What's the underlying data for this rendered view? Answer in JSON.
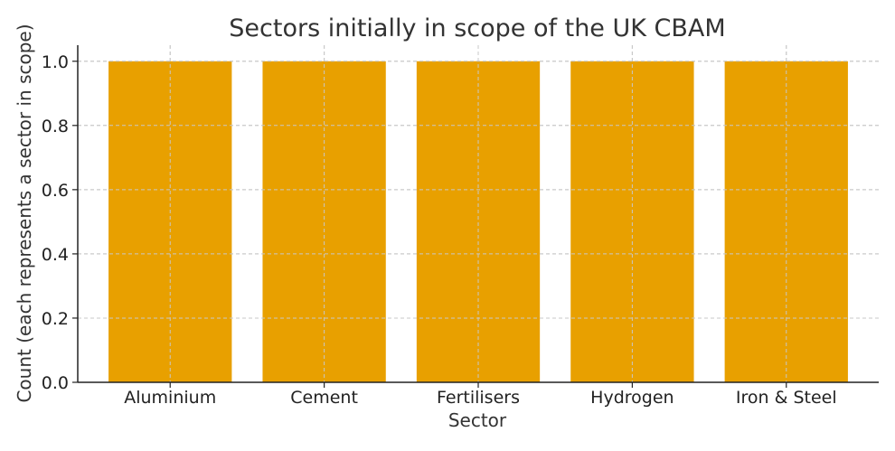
{
  "chart_data": {
    "type": "bar",
    "title": "Sectors initially in scope of the UK CBAM",
    "xlabel": "Sector",
    "ylabel": "Count (each represents a sector in scope)",
    "categories": [
      "Aluminium",
      "Cement",
      "Fertilisers",
      "Hydrogen",
      "Iron & Steel"
    ],
    "values": [
      1,
      1,
      1,
      1,
      1
    ],
    "ylim": [
      0,
      1.05
    ],
    "yticks": [
      "0.0",
      "0.2",
      "0.4",
      "0.6",
      "0.8",
      "1.0"
    ],
    "grid": true,
    "bar_color": "#E8A000"
  }
}
